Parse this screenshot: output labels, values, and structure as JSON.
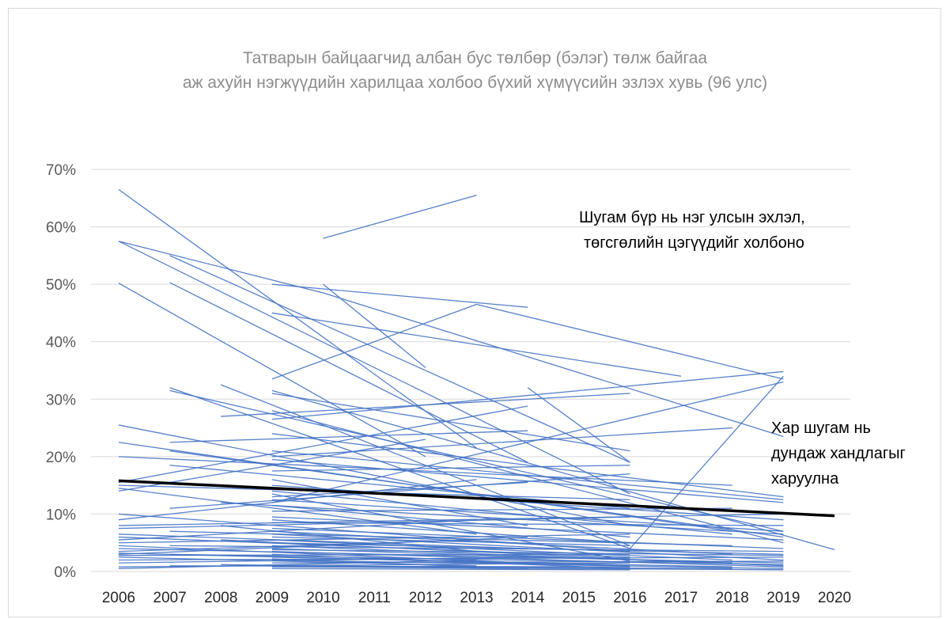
{
  "chart_data": {
    "type": "line",
    "title": "Татварын байцаагчид албан бус төлбөр (бэлэг) төлж байгаа",
    "subtitle": "аж ахуйн нэгжүүдийн харилцаа холбоо бүхий хүмүүсийн эзлэх хувь (96 улс)",
    "xlabel": "",
    "ylabel": "",
    "x_ticks": [
      "2006",
      "2007",
      "2008",
      "2009",
      "2010",
      "2011",
      "2012",
      "2013",
      "2014",
      "2015",
      "2016",
      "2017",
      "2018",
      "2019",
      "2020"
    ],
    "y_ticks": [
      "0%",
      "10%",
      "20%",
      "30%",
      "40%",
      "50%",
      "60%",
      "70%"
    ],
    "ylim": [
      0,
      70
    ],
    "xlim": [
      2006,
      2020
    ],
    "grid": "horizontal",
    "colors": {
      "series": "#4472c4",
      "trend": "#000000",
      "grid": "#d9d9d9"
    },
    "annotations": [
      {
        "lines": [
          "Шугам бүр нь нэг улсын эхлэл,",
          "төгсгөлийн цэгүүдийг холбоно"
        ]
      },
      {
        "lines": [
          "Хар шугам нь",
          "дундаж хандлагыг",
          "харуулна"
        ]
      }
    ],
    "trend": {
      "x": [
        2006,
        2020
      ],
      "y": [
        15.8,
        9.7
      ]
    },
    "country_segments": [
      [
        2006,
        66.5,
        2013,
        21.5
      ],
      [
        2006,
        57.5,
        2010,
        48.5
      ],
      [
        2006,
        57.5,
        2016,
        13.5
      ],
      [
        2006,
        50.2,
        2012,
        20.0
      ],
      [
        2007,
        55.0,
        2016,
        19.0
      ],
      [
        2007,
        50.3,
        2014,
        19.0
      ],
      [
        2009,
        50.0,
        2014,
        46.0
      ],
      [
        2010,
        58.0,
        2013,
        65.5
      ],
      [
        2010,
        48.5,
        2019,
        23.5
      ],
      [
        2009,
        33.5,
        2013,
        46.5
      ],
      [
        2013,
        46.5,
        2019,
        33.5
      ],
      [
        2010,
        50.0,
        2012,
        35.5
      ],
      [
        2009,
        45.0,
        2017,
        34.0
      ],
      [
        2007,
        32.0,
        2016,
        4.0
      ],
      [
        2007,
        31.5,
        2019,
        7.0
      ],
      [
        2008,
        32.5,
        2016,
        4.5
      ],
      [
        2009,
        31.5,
        2020,
        3.8
      ],
      [
        2009,
        31.0,
        2016,
        21.0
      ],
      [
        2006,
        25.5,
        2016,
        8.0
      ],
      [
        2006,
        22.5,
        2018,
        7.0
      ],
      [
        2006,
        15.5,
        2014,
        28.8
      ],
      [
        2008,
        27.0,
        2016,
        31.0
      ],
      [
        2009,
        26.5,
        2019,
        34.8
      ],
      [
        2014,
        32.0,
        2016,
        19.0
      ],
      [
        2016,
        4.0,
        2019,
        34.0
      ],
      [
        2009,
        12.0,
        2019,
        33.0
      ],
      [
        2009,
        28.0,
        2019,
        5.0
      ],
      [
        2007,
        21.0,
        2019,
        6.0
      ],
      [
        2009,
        21.0,
        2019,
        12.5
      ],
      [
        2007,
        22.5,
        2014,
        24.5
      ],
      [
        2009,
        20.0,
        2018,
        25.0
      ],
      [
        2006,
        20.0,
        2018,
        15.0
      ],
      [
        2009,
        19.5,
        2019,
        12.0
      ],
      [
        2006,
        14.0,
        2012,
        23.0
      ],
      [
        2009,
        17.5,
        2016,
        18.5
      ],
      [
        2006,
        15.0,
        2016,
        12.5
      ],
      [
        2007,
        11.0,
        2016,
        17.0
      ],
      [
        2009,
        15.0,
        2019,
        9.0
      ],
      [
        2006,
        14.5,
        2013,
        6.5
      ],
      [
        2009,
        14.0,
        2018,
        6.5
      ],
      [
        2009,
        13.0,
        2014,
        15.5
      ],
      [
        2006,
        10.0,
        2016,
        3.5
      ],
      [
        2009,
        12.5,
        2019,
        7.0
      ],
      [
        2006,
        9.0,
        2013,
        16.0
      ],
      [
        2009,
        11.5,
        2016,
        6.0
      ],
      [
        2006,
        8.0,
        2019,
        10.0
      ],
      [
        2009,
        10.5,
        2018,
        11.0
      ],
      [
        2006,
        7.5,
        2016,
        9.5
      ],
      [
        2009,
        9.5,
        2019,
        5.5
      ],
      [
        2006,
        6.5,
        2014,
        4.0
      ],
      [
        2009,
        8.5,
        2019,
        8.0
      ],
      [
        2006,
        6.0,
        2016,
        2.5
      ],
      [
        2009,
        7.5,
        2019,
        4.0
      ],
      [
        2006,
        5.5,
        2013,
        9.0
      ],
      [
        2009,
        7.0,
        2018,
        3.0
      ],
      [
        2006,
        5.0,
        2016,
        6.5
      ],
      [
        2009,
        6.5,
        2019,
        2.0
      ],
      [
        2006,
        4.5,
        2014,
        1.5
      ],
      [
        2009,
        6.0,
        2016,
        4.5
      ],
      [
        2006,
        4.0,
        2019,
        1.5
      ],
      [
        2009,
        5.5,
        2018,
        2.0
      ],
      [
        2006,
        3.5,
        2013,
        5.5
      ],
      [
        2009,
        5.0,
        2019,
        3.0
      ],
      [
        2006,
        3.2,
        2016,
        1.0
      ],
      [
        2009,
        4.5,
        2019,
        1.0
      ],
      [
        2006,
        3.0,
        2014,
        6.0
      ],
      [
        2009,
        4.0,
        2018,
        1.5
      ],
      [
        2006,
        2.8,
        2016,
        3.0
      ],
      [
        2009,
        3.5,
        2019,
        0.8
      ],
      [
        2006,
        2.5,
        2013,
        1.0
      ],
      [
        2009,
        3.0,
        2016,
        0.5
      ],
      [
        2006,
        2.0,
        2019,
        2.5
      ],
      [
        2009,
        2.5,
        2018,
        0.8
      ],
      [
        2006,
        1.5,
        2014,
        2.5
      ],
      [
        2009,
        2.0,
        2019,
        0.5
      ],
      [
        2006,
        0.8,
        2016,
        1.5
      ],
      [
        2009,
        1.5,
        2019,
        1.8
      ],
      [
        2006,
        0.5,
        2013,
        2.0
      ],
      [
        2009,
        1.0,
        2018,
        0.5
      ],
      [
        2007,
        1.0,
        2016,
        0.8
      ],
      [
        2009,
        0.8,
        2019,
        0.3
      ],
      [
        2008,
        1.2,
        2014,
        0.5
      ],
      [
        2009,
        0.5,
        2016,
        0.3
      ],
      [
        2007,
        3.0,
        2019,
        1.2
      ],
      [
        2009,
        2.2,
        2013,
        0.8
      ],
      [
        2008,
        5.5,
        2016,
        2.2
      ],
      [
        2009,
        3.8,
        2019,
        2.8
      ],
      [
        2007,
        7.0,
        2018,
        4.5
      ],
      [
        2009,
        9.0,
        2016,
        5.0
      ],
      [
        2008,
        12.0,
        2019,
        6.5
      ],
      [
        2009,
        16.0,
        2014,
        8.0
      ],
      [
        2007,
        18.5,
        2016,
        11.0
      ],
      [
        2009,
        24.0,
        2019,
        13.0
      ],
      [
        2008,
        8.0,
        2013,
        3.5
      ],
      [
        2009,
        13.5,
        2016,
        1.8
      ],
      [
        2007,
        4.5,
        2019,
        3.5
      ]
    ]
  }
}
